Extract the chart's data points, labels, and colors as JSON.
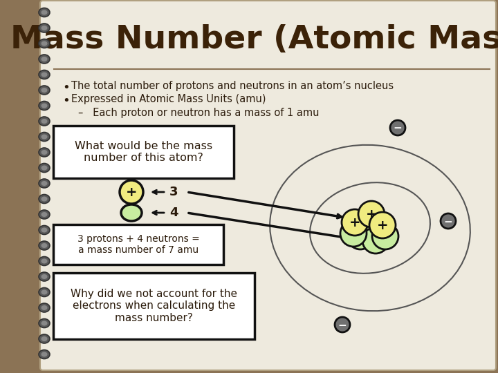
{
  "title": "Mass Number (Atomic Mass)",
  "bg_outer": "#8B7355",
  "bg_paper": "#EEEADE",
  "title_color": "#3B2208",
  "bullet1": "The total number of protons and neutrons in an atom’s nucleus",
  "bullet2": "Expressed in Atomic Mass Units (amu)",
  "bullet3": "–   Each proton or neutron has a mass of 1 amu",
  "box1_text": "What would be the mass\nnumber of this atom?",
  "box2_text": "3 protons + 4 neutrons =\na mass number of 7 amu",
  "box3_text": "Why did we not account for the\nelectrons when calculating the\nmass number?",
  "proton_color": "#F0EB80",
  "neutron_color": "#C8ECA0",
  "electron_bg": "#AAAAAA",
  "orbit_color": "#555555",
  "nucleus_outline": "#111111",
  "text_dark": "#2A1A0A",
  "box_bg": "#FFFFFF",
  "box_border": "#111111",
  "arrow_color": "#111111",
  "spiral_dark": "#5A5A5A",
  "spiral_light": "#888888",
  "line_color": "#8B7355"
}
